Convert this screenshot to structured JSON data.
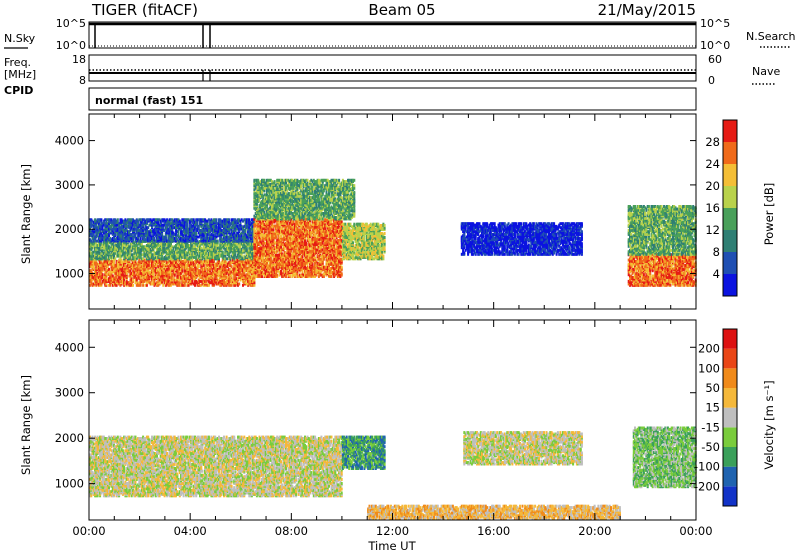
{
  "header": {
    "radar": "TIGER (fitACF)",
    "beam": "Beam 05",
    "date": "21/May/2015"
  },
  "strips": {
    "nsky_label": "N.Sky",
    "nsearch_label": "N.Search",
    "noise_ticks_left": [
      "10^5",
      "10^0"
    ],
    "noise_ticks_right": [
      "10^5",
      "10^0"
    ],
    "freq_label_1": "Freq.",
    "freq_label_2": "[MHz]",
    "freq_ticks": [
      "18",
      "8"
    ],
    "nave_label": "Nave",
    "nave_ticks": [
      "60",
      "0"
    ],
    "cpid_label": "CPID",
    "cpid_value": "normal (fast) 151"
  },
  "chart_data": [
    {
      "type": "heatmap",
      "name": "power",
      "ylabel": "Slant Range [km]",
      "xlabel": "",
      "ylim": [
        200,
        4600
      ],
      "y_ticks": [
        "1000",
        "2000",
        "3000",
        "4000"
      ],
      "colorbar": {
        "label": "Power [dB]",
        "ticks": [
          "28",
          "24",
          "20",
          "16",
          "12",
          "8",
          "4"
        ],
        "colors": [
          "#0b13e0",
          "#1f4fb3",
          "#2f7f74",
          "#49a05a",
          "#b9d24b",
          "#f4be36",
          "#f06a1a",
          "#e61b14"
        ]
      },
      "bands": [
        {
          "t0": 0.0,
          "t1": 6.5,
          "r0": 700,
          "r1": 1300,
          "level": 6
        },
        {
          "t0": 0.0,
          "t1": 6.5,
          "r0": 1300,
          "r1": 1700,
          "level": 3
        },
        {
          "t0": 0.0,
          "t1": 6.5,
          "r0": 1700,
          "r1": 2200,
          "level": 1
        },
        {
          "t0": 6.5,
          "t1": 10.0,
          "r0": 900,
          "r1": 2200,
          "level": 6
        },
        {
          "t0": 6.5,
          "t1": 10.5,
          "r0": 2200,
          "r1": 3100,
          "level": 3
        },
        {
          "t0": 10.0,
          "t1": 11.7,
          "r0": 1300,
          "r1": 2100,
          "level": 4
        },
        {
          "t0": 14.7,
          "t1": 19.5,
          "r0": 1400,
          "r1": 2100,
          "level": 0
        },
        {
          "t0": 21.3,
          "t1": 24.0,
          "r0": 700,
          "r1": 1400,
          "level": 6
        },
        {
          "t0": 21.3,
          "t1": 24.0,
          "r0": 1400,
          "r1": 2500,
          "level": 3
        }
      ]
    },
    {
      "type": "heatmap",
      "name": "velocity",
      "ylabel": "Slant Range [km]",
      "xlabel": "Time UT",
      "ylim": [
        200,
        4600
      ],
      "y_ticks": [
        "1000",
        "2000",
        "3000",
        "4000"
      ],
      "x_ticks": [
        "00:00",
        "04:00",
        "08:00",
        "12:00",
        "16:00",
        "20:00",
        "00:00"
      ],
      "colorbar": {
        "label": "Velocity [m s⁻¹]",
        "ticks": [
          "200",
          "100",
          "50",
          "15",
          "-15",
          "-50",
          "-100",
          "-200"
        ],
        "colors": [
          "#1233c8",
          "#1f63b0",
          "#3aa05a",
          "#7acc3c",
          "#bfbfbf",
          "#f5b83a",
          "#f08a1a",
          "#ea4616",
          "#dd1111"
        ]
      },
      "bands": [
        {
          "t0": 0.0,
          "t1": 10.0,
          "r0": 700,
          "r1": 2000,
          "level": 4
        },
        {
          "t0": 10.0,
          "t1": 11.7,
          "r0": 1300,
          "r1": 2000,
          "level": 2
        },
        {
          "t0": 14.8,
          "t1": 19.5,
          "r0": 1400,
          "r1": 2100,
          "level": 4
        },
        {
          "t0": 21.5,
          "t1": 24.0,
          "r0": 900,
          "r1": 2200,
          "level": 3
        },
        {
          "t0": 11.0,
          "t1": 21.0,
          "r0": 200,
          "r1": 500,
          "level": 5
        }
      ]
    }
  ]
}
